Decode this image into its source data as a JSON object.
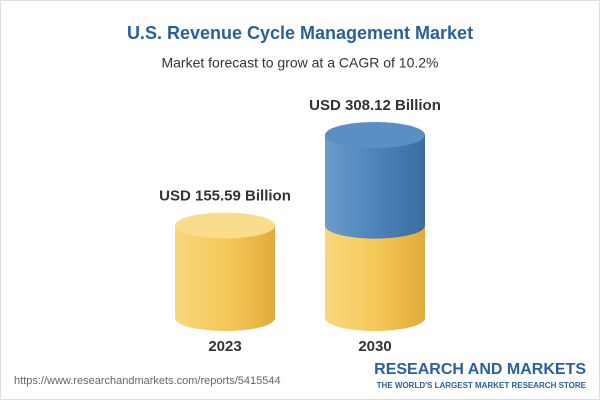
{
  "chart_data": {
    "type": "cylinder",
    "title": "U.S. Revenue Cycle Management Market",
    "subtitle": "Market forecast to grow at a CAGR of 10.2%",
    "categories": [
      "2023",
      "2030"
    ],
    "values": [
      155.59,
      308.12
    ],
    "value_labels": [
      "USD 155.59 Billion",
      "USD 308.12 Billion"
    ],
    "colors": [
      "#f4c55a",
      "#4d84bb"
    ]
  },
  "footer": {
    "source": "https://www.researchandmarkets.com/reports/5415544",
    "brand": "RESEARCH AND MARKETS",
    "tagline": "THE WORLD'S LARGEST MARKET RESEARCH STORE"
  }
}
